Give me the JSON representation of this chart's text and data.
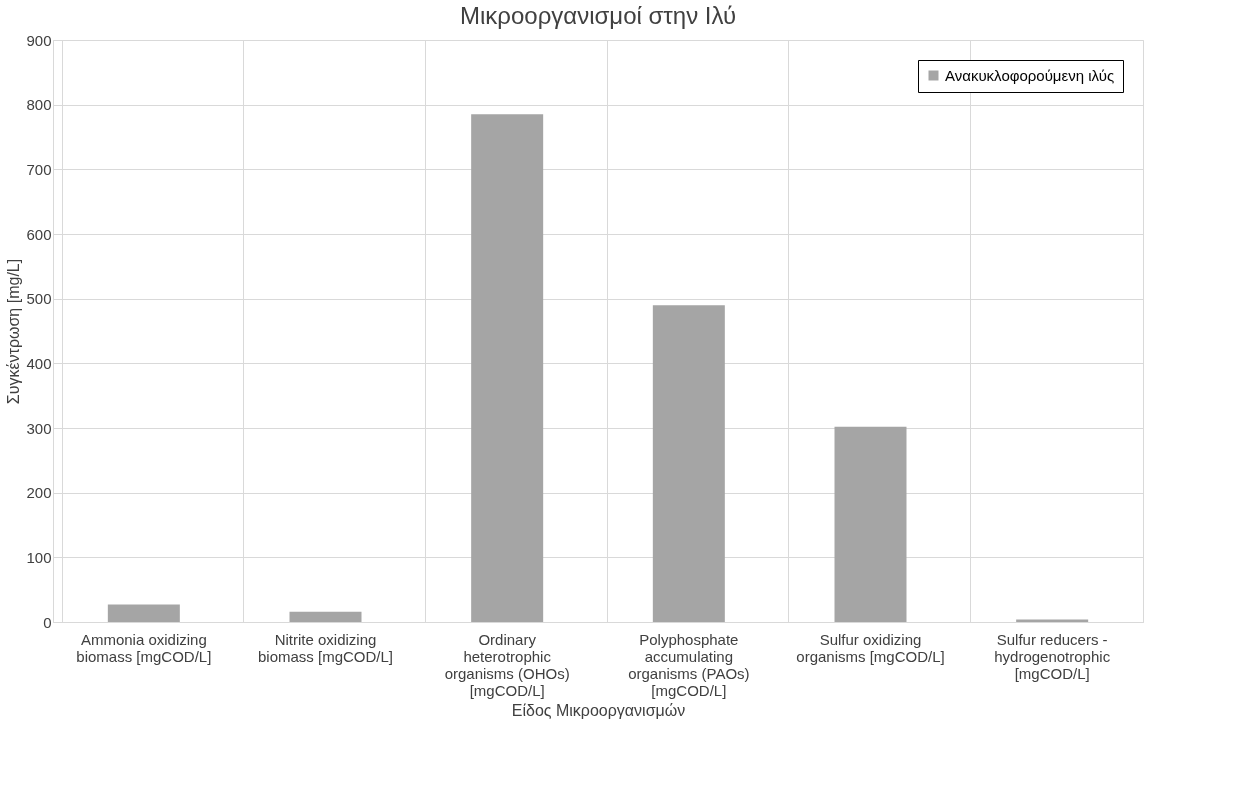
{
  "chart_data": {
    "type": "bar",
    "title": "Μικροοργανισμοί στην Ιλύ",
    "xlabel": "Είδος Μικροοργανισμών",
    "ylabel": "Συγκέντρωση [mg/L]",
    "categories": [
      "Ammonia oxidizing biomass [mgCOD/L]",
      "Nitrite oxidizing biomass [mgCOD/L]",
      "Ordinary heterotrophic organisms (OHOs) [mgCOD/L]",
      "Polyphosphate accumulating organisms (PAOs) [mgCOD/L]",
      "Sulfur oxidizing organisms [mgCOD/L]",
      "Sulfur reducers - hydrogenotrophic [mgCOD/L]"
    ],
    "series": [
      {
        "name": "Ανακυκλοφορούμενη ιλύς",
        "color": "#a5a5a5",
        "values": [
          27,
          16,
          785,
          490,
          302,
          4
        ]
      }
    ],
    "ylim": [
      0,
      900
    ],
    "yticks": [
      0,
      100,
      200,
      300,
      400,
      500,
      600,
      700,
      800,
      900
    ],
    "grid": true,
    "legend": "top right"
  }
}
